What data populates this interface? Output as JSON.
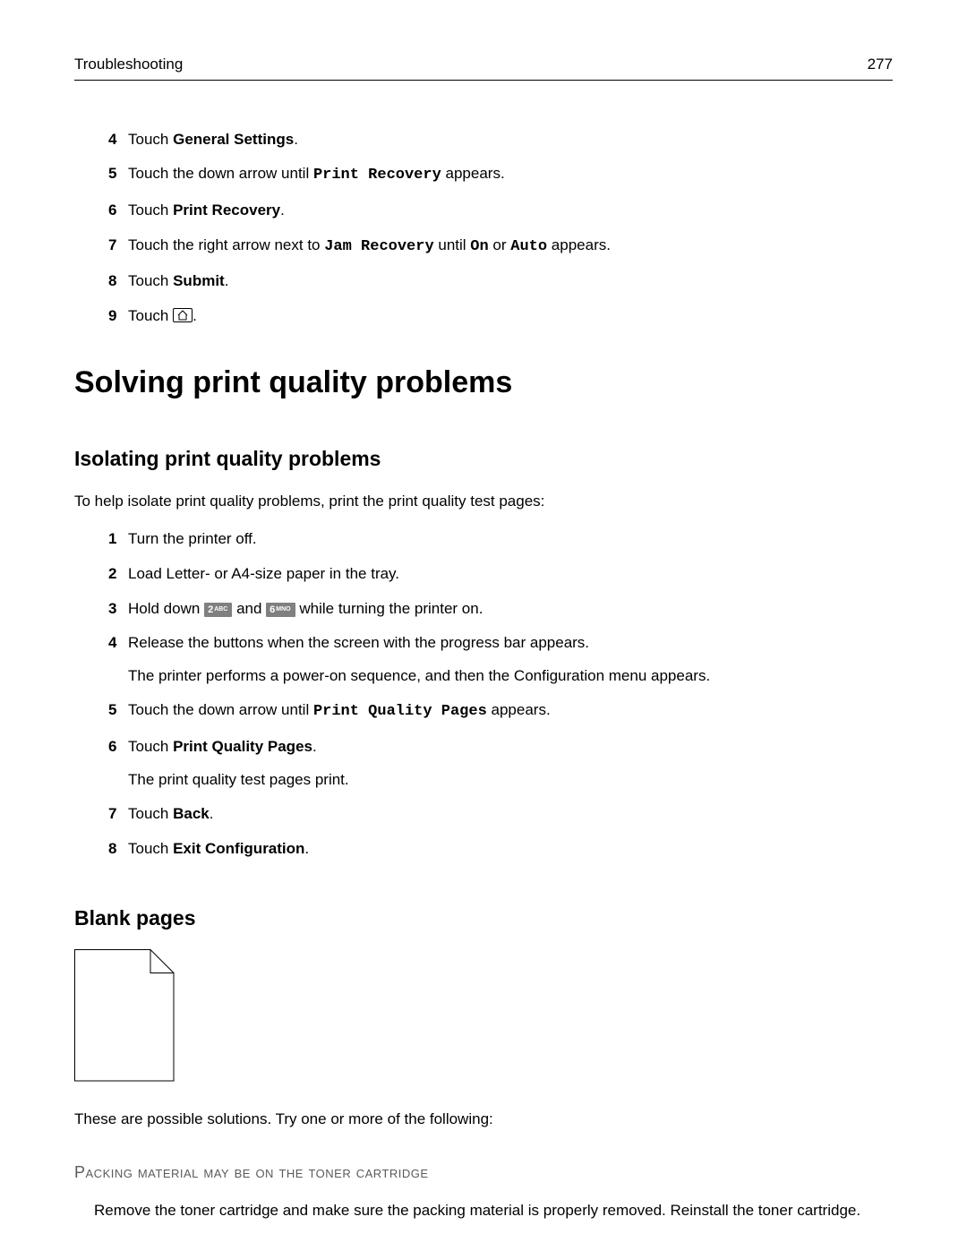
{
  "header": {
    "chapter": "Troubleshooting",
    "page": "277"
  },
  "topSteps": [
    {
      "num": "4",
      "pre": "Touch ",
      "bold": "General Settings",
      "post": "."
    },
    {
      "num": "5",
      "pre": "Touch the down arrow until ",
      "mono": "Print Recovery",
      "post": " appears."
    },
    {
      "num": "6",
      "pre": "Touch ",
      "bold": "Print Recovery",
      "post": "."
    },
    {
      "num": "7",
      "pre": "Touch the right arrow next to ",
      "mono": "Jam Recovery",
      "mid": " until ",
      "mono2": "On",
      "mid2": " or ",
      "mono3": "Auto",
      "post": " appears."
    },
    {
      "num": "8",
      "pre": "Touch ",
      "bold": "Submit",
      "post": "."
    },
    {
      "num": "9",
      "pre": "Touch ",
      "icon": "home",
      "post": "."
    }
  ],
  "h1": "Solving print quality problems",
  "iso": {
    "heading": "Isolating print quality problems",
    "intro": "To help isolate print quality problems, print the print quality test pages:",
    "steps": [
      {
        "num": "1",
        "text": "Turn the printer off."
      },
      {
        "num": "2",
        "text": "Load Letter- or A4-size paper in the tray."
      },
      {
        "num": "3",
        "pre": "Hold down ",
        "key1": "2",
        "key1sup": "ABC",
        "mid": " and ",
        "key2": "6",
        "key2sup": "MNO",
        "post": " while turning the printer on."
      },
      {
        "num": "4",
        "text": "Release the buttons when the screen with the progress bar appears.",
        "sub": "The printer performs a power-on sequence, and then the Configuration menu appears."
      },
      {
        "num": "5",
        "pre": "Touch the down arrow until ",
        "mono": "Print Quality Pages",
        "post": " appears."
      },
      {
        "num": "6",
        "pre": "Touch ",
        "bold": "Print Quality Pages",
        "post": ".",
        "sub": "The print quality test pages print."
      },
      {
        "num": "7",
        "pre": "Touch ",
        "bold": "Back",
        "post": "."
      },
      {
        "num": "8",
        "pre": "Touch ",
        "bold": "Exit Configuration",
        "post": "."
      }
    ]
  },
  "blank": {
    "heading": "Blank pages",
    "intro": "These are possible solutions. Try one or more of the following:",
    "subheading": "Packing material may be on the toner cartridge",
    "body": "Remove the toner cartridge and make sure the packing material is properly removed. Reinstall the toner cartridge."
  },
  "diagram": {
    "width": 112,
    "height": 148,
    "fold": 26,
    "stroke": "#000000"
  }
}
